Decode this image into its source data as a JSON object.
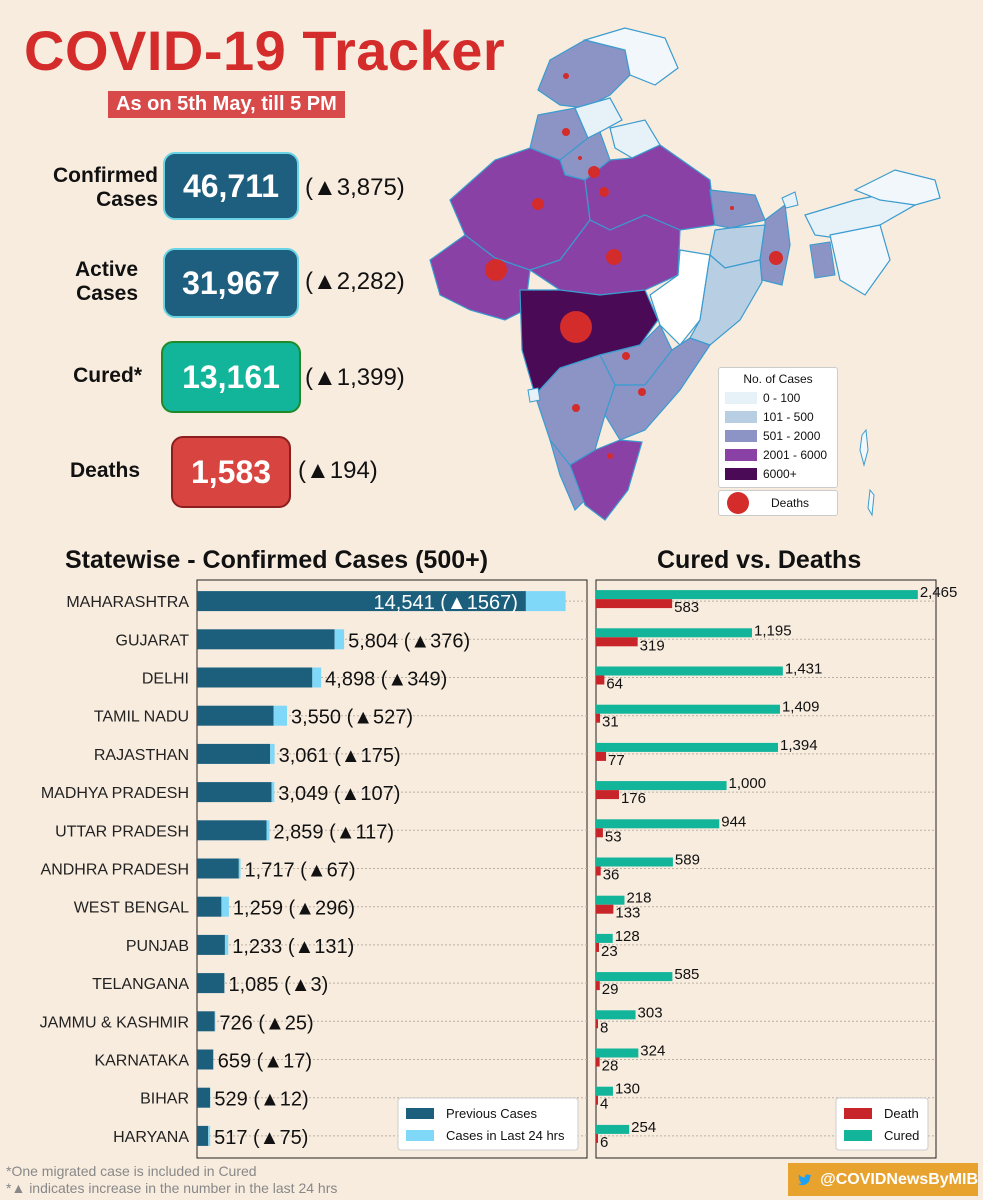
{
  "header": {
    "title": "COVID-19 Tracker",
    "subtitle": "As on 5th May, till 5 PM"
  },
  "stats": {
    "confirmed": {
      "label": "Confirmed Cases",
      "value": "46,711",
      "delta": "(▲3,875)",
      "color": "#1e5e7e"
    },
    "active": {
      "label": "Active Cases",
      "value": "31,967",
      "delta": "(▲2,282)",
      "color": "#1e5e7e"
    },
    "cured": {
      "label": "Cured*",
      "value": "13,161",
      "delta": "(▲1,399)",
      "color": "#12b59a"
    },
    "deaths": {
      "label": "Deaths",
      "value": "1,583",
      "delta": "(▲194)",
      "color": "#d84440"
    }
  },
  "map": {
    "legend_title": "No. of Cases",
    "legend": [
      {
        "label": "0 - 100",
        "color": "#e6f1f8"
      },
      {
        "label": "101 - 500",
        "color": "#b8cfe3"
      },
      {
        "label": "501 - 2000",
        "color": "#8c94c6"
      },
      {
        "label": "2001 - 6000",
        "color": "#8a41a6"
      },
      {
        "label": "6000+",
        "color": "#4b0a55"
      }
    ],
    "deaths_label": "Deaths"
  },
  "chart_data": [
    {
      "type": "bar",
      "title": "Statewise - Confirmed Cases (500+)",
      "categories": [
        "MAHARASHTRA",
        "GUJARAT",
        "DELHI",
        "TAMIL NADU",
        "RAJASTHAN",
        "MADHYA PRADESH",
        "UTTAR PRADESH",
        "ANDHRA PRADESH",
        "WEST BENGAL",
        "PUNJAB",
        "TELANGANA",
        "JAMMU & KASHMIR",
        "KARNATAKA",
        "BIHAR",
        "HARYANA"
      ],
      "series": [
        {
          "name": "Previous Cases",
          "color": "#1b5f7c",
          "values": [
            12974,
            5428,
            4549,
            3023,
            2886,
            2942,
            2742,
            1650,
            963,
            1102,
            1082,
            701,
            642,
            517,
            442
          ]
        },
        {
          "name": "Cases in Last 24 hrs",
          "color": "#7fd8f8",
          "values": [
            1567,
            376,
            349,
            527,
            175,
            107,
            117,
            67,
            296,
            131,
            3,
            25,
            17,
            12,
            75
          ]
        }
      ],
      "labels": [
        "14,541 (▲1567)",
        "5,804 (▲376)",
        "4,898 (▲349)",
        "3,550 (▲527)",
        "3,061 (▲175)",
        "3,049 (▲107)",
        "2,859 (▲117)",
        "1,717 (▲67)",
        "1,259 (▲296)",
        "1,233 (▲131)",
        "1,085 (▲3)",
        "726 (▲25)",
        "659 (▲17)",
        "529 (▲12)",
        "517 (▲75)"
      ],
      "xlim": [
        0,
        15000
      ],
      "legend_position": "bottom-right"
    },
    {
      "type": "bar",
      "title": "Cured vs. Deaths",
      "categories": [
        "MAHARASHTRA",
        "GUJARAT",
        "DELHI",
        "TAMIL NADU",
        "RAJASTHAN",
        "MADHYA PRADESH",
        "UTTAR PRADESH",
        "ANDHRA PRADESH",
        "WEST BENGAL",
        "PUNJAB",
        "TELANGANA",
        "JAMMU & KASHMIR",
        "KARNATAKA",
        "BIHAR",
        "HARYANA"
      ],
      "series": [
        {
          "name": "Cured",
          "color": "#12b59a",
          "values": [
            2465,
            1195,
            1431,
            1409,
            1394,
            1000,
            944,
            589,
            218,
            128,
            585,
            303,
            324,
            130,
            254
          ]
        },
        {
          "name": "Death",
          "color": "#c8252a",
          "values": [
            583,
            319,
            64,
            31,
            77,
            176,
            53,
            36,
            133,
            23,
            29,
            8,
            28,
            4,
            6
          ]
        }
      ],
      "cured_labels": [
        "2,465",
        "1,195",
        "1,431",
        "1,409",
        "1,394",
        "1,000",
        "944",
        "589",
        "218",
        "128",
        "585",
        "303",
        "324",
        "130",
        "254"
      ],
      "death_labels": [
        "583",
        "319",
        "64",
        "31",
        "77",
        "176",
        "53",
        "36",
        "133",
        "23",
        "29",
        "8",
        "28",
        "4",
        "6"
      ],
      "xlim": [
        0,
        2500
      ],
      "legend_position": "bottom-right"
    }
  ],
  "footnotes": {
    "line1": "*One migrated case is included in Cured",
    "line2": "*▲ indicates increase in the number in the last 24 hrs"
  },
  "twitter": {
    "handle": "@COVIDNewsByMIB"
  }
}
